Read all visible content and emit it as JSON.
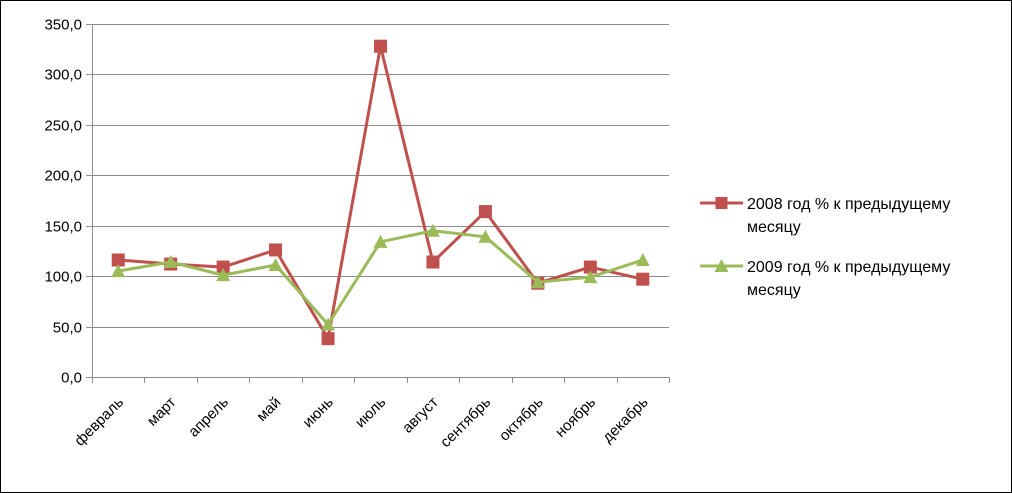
{
  "chart_data": {
    "type": "line",
    "categories": [
      "февраль",
      "март",
      "апрель",
      "май",
      "июнь",
      "июль",
      "август",
      "сентябрь",
      "октябрь",
      "ноябрь",
      "декабрь"
    ],
    "ylim": [
      0,
      350
    ],
    "yticks": [
      "0,0",
      "50,0",
      "100,0",
      "150,0",
      "200,0",
      "250,0",
      "300,0",
      "350,0"
    ],
    "grid": true,
    "legend_position": "right",
    "series": [
      {
        "name": "2008 год % к предыдущему месяцу",
        "name_lines": [
          "2008 год % к предыдущему",
          "месяцу"
        ],
        "color": "#C0504D",
        "marker": "square",
        "values": [
          116,
          112,
          109,
          126,
          38,
          328,
          114,
          164,
          93,
          109,
          97
        ]
      },
      {
        "name": "2009 год % к предыдущему месяцу",
        "name_lines": [
          "2009 год % к предыдущему",
          "месяцу"
        ],
        "color": "#9BBB59",
        "marker": "triangle",
        "values": [
          105,
          114,
          101,
          111,
          52,
          134,
          145,
          139,
          94,
          99,
          116
        ]
      }
    ]
  }
}
